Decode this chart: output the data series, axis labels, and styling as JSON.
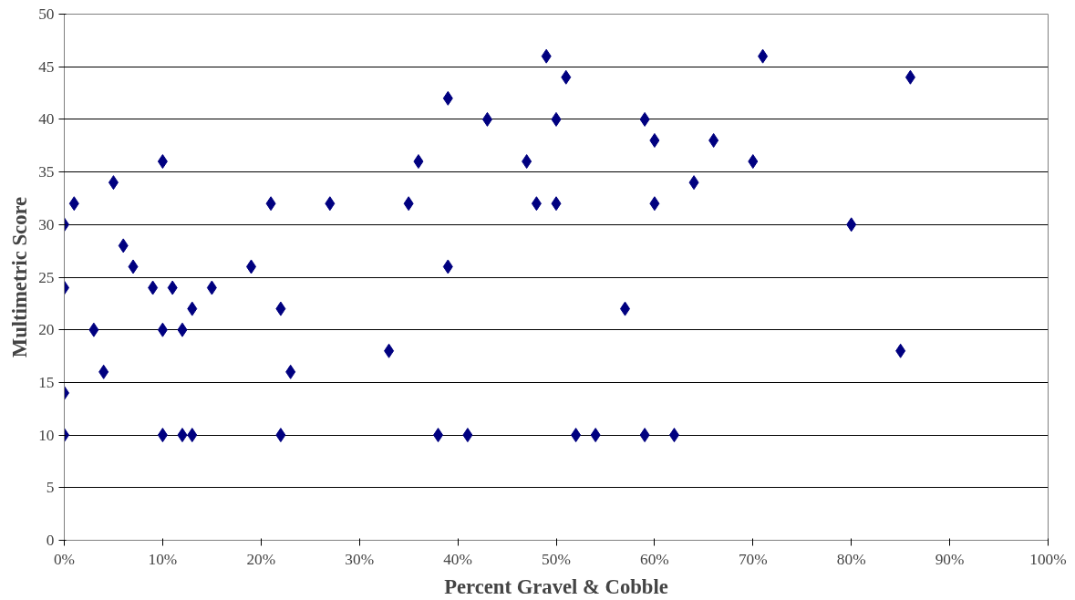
{
  "chart_data": {
    "type": "scatter",
    "xlabel": "Percent Gravel & Cobble",
    "ylabel": "Multimetric Score",
    "x": [
      0,
      0,
      0,
      0,
      1,
      3,
      4,
      5,
      6,
      7,
      9,
      10,
      10,
      10,
      11,
      12,
      12,
      13,
      13,
      15,
      19,
      21,
      22,
      22,
      23,
      27,
      33,
      35,
      36,
      38,
      39,
      39,
      41,
      43,
      47,
      48,
      49,
      50,
      50,
      51,
      52,
      54,
      57,
      59,
      59,
      60,
      60,
      62,
      64,
      66,
      70,
      71,
      80,
      85,
      86
    ],
    "series": [
      {
        "color": "#000080",
        "values": [
          30,
          24,
          14,
          10,
          32,
          20,
          16,
          34,
          28,
          26,
          24,
          36,
          20,
          10,
          24,
          20,
          10,
          22,
          10,
          24,
          26,
          32,
          22,
          10,
          16,
          32,
          18,
          32,
          36,
          10,
          42,
          26,
          10,
          40,
          36,
          32,
          46,
          40,
          32,
          44,
          10,
          10,
          22,
          40,
          10,
          38,
          32,
          10,
          34,
          38,
          36,
          46,
          30,
          18,
          44
        ]
      }
    ],
    "xlim": [
      0,
      100
    ],
    "ylim": [
      0,
      50
    ],
    "xticks": [
      {
        "value": 0,
        "label": "0%"
      },
      {
        "value": 10,
        "label": "10%"
      },
      {
        "value": 20,
        "label": "20%"
      },
      {
        "value": 30,
        "label": "30%"
      },
      {
        "value": 40,
        "label": "40%"
      },
      {
        "value": 50,
        "label": "50%"
      },
      {
        "value": 60,
        "label": "60%"
      },
      {
        "value": 70,
        "label": "70%"
      },
      {
        "value": 80,
        "label": "80%"
      },
      {
        "value": 90,
        "label": "90%"
      },
      {
        "value": 100,
        "label": "100%"
      }
    ],
    "yticks": [
      0,
      5,
      10,
      15,
      20,
      25,
      30,
      35,
      40,
      45,
      50
    ],
    "grid": "y",
    "marker": "diamond"
  }
}
